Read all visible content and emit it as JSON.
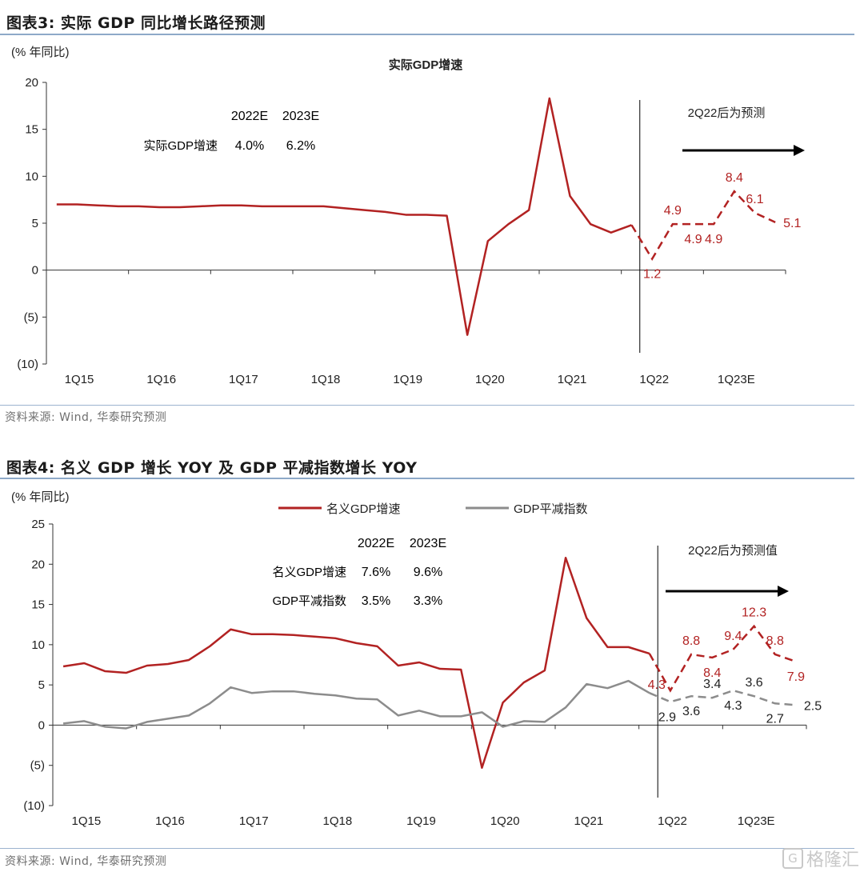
{
  "figure3": {
    "title": "图表3:  实际 GDP 同比增长路径预测",
    "unit_label": "(% 年同比)",
    "chart_title": "实际GDP增速",
    "forecast_note": "2Q22后为预测",
    "table": {
      "headers": [
        "2022E",
        "2023E"
      ],
      "rows": [
        {
          "label": "实际GDP增速",
          "values": [
            "4.0%",
            "6.2%"
          ]
        }
      ]
    },
    "source": "资料来源: Wind, 华泰研究预测"
  },
  "figure4": {
    "title": "图表4:  名义 GDP 增长 YOY 及 GDP 平减指数增长 YOY",
    "unit_label": "(% 年同比)",
    "forecast_note": "2Q22后为预测值",
    "table": {
      "headers": [
        "2022E",
        "2023E"
      ],
      "rows": [
        {
          "label": "名义GDP增速",
          "values": [
            "7.6%",
            "9.6%"
          ]
        },
        {
          "label": "GDP平减指数",
          "values": [
            "3.5%",
            "3.3%"
          ]
        }
      ]
    },
    "source": "资料来源: Wind, 华泰研究预测"
  },
  "watermark": "格隆汇",
  "colors": {
    "red": "#b22222",
    "gray": "#8c8c8c",
    "axis": "#333333"
  },
  "chart_data": [
    {
      "type": "line",
      "title": "实际GDP增速",
      "ylabel": "(% 年同比)",
      "ylim": [
        -10,
        20
      ],
      "yticks": [
        20,
        15,
        10,
        5,
        0,
        -5,
        -10
      ],
      "ytick_labels": [
        "20",
        "15",
        "10",
        "5",
        "0",
        "(5)",
        "(10)"
      ],
      "x_count": 36,
      "xtick_labels": [
        {
          "i": 0,
          "label": "1Q15"
        },
        {
          "i": 4,
          "label": "1Q16"
        },
        {
          "i": 8,
          "label": "1Q17"
        },
        {
          "i": 12,
          "label": "1Q18"
        },
        {
          "i": 16,
          "label": "1Q19"
        },
        {
          "i": 20,
          "label": "1Q20"
        },
        {
          "i": 24,
          "label": "1Q21"
        },
        {
          "i": 28,
          "label": "1Q22"
        },
        {
          "i": 32,
          "label": "1Q23E"
        }
      ],
      "forecast_start_index": 29,
      "series": [
        {
          "name": "实际GDP增速",
          "color": "#b22222",
          "values": [
            7.0,
            7.0,
            6.9,
            6.8,
            6.8,
            6.7,
            6.7,
            6.8,
            6.9,
            6.9,
            6.8,
            6.8,
            6.8,
            6.8,
            6.6,
            6.4,
            6.2,
            5.9,
            5.9,
            5.8,
            -6.9,
            3.1,
            4.9,
            6.4,
            18.3,
            7.9,
            4.9,
            4.0,
            4.8,
            1.2,
            4.9,
            4.9,
            4.9,
            8.4,
            6.1,
            5.1
          ],
          "labels": [
            {
              "i": 29,
              "text": "1.2",
              "pos": "below"
            },
            {
              "i": 30,
              "text": "4.9",
              "pos": "above"
            },
            {
              "i": 31,
              "text": "4.9",
              "pos": "below"
            },
            {
              "i": 32,
              "text": "4.9",
              "pos": "below"
            },
            {
              "i": 33,
              "text": "8.4",
              "pos": "above"
            },
            {
              "i": 34,
              "text": "6.1",
              "pos": "above"
            },
            {
              "i": 35,
              "text": "5.1",
              "pos": "right"
            }
          ]
        }
      ]
    },
    {
      "type": "line",
      "title": "",
      "ylabel": "(% 年同比)",
      "ylim": [
        -10,
        25
      ],
      "yticks": [
        25,
        20,
        15,
        10,
        5,
        0,
        -5,
        -10
      ],
      "ytick_labels": [
        "25",
        "20",
        "15",
        "10",
        "5",
        "0",
        "(5)",
        "(10)"
      ],
      "x_count": 36,
      "xtick_labels": [
        {
          "i": 0,
          "label": "1Q15"
        },
        {
          "i": 4,
          "label": "1Q16"
        },
        {
          "i": 8,
          "label": "1Q17"
        },
        {
          "i": 12,
          "label": "1Q18"
        },
        {
          "i": 16,
          "label": "1Q19"
        },
        {
          "i": 20,
          "label": "1Q20"
        },
        {
          "i": 24,
          "label": "1Q21"
        },
        {
          "i": 28,
          "label": "1Q22"
        },
        {
          "i": 32,
          "label": "1Q23E"
        }
      ],
      "forecast_start_index": 29,
      "legend": [
        {
          "name": "名义GDP增速",
          "color": "#b22222"
        },
        {
          "name": "GDP平减指数",
          "color": "#8c8c8c"
        }
      ],
      "series": [
        {
          "name": "名义GDP增速",
          "color": "#b22222",
          "values": [
            7.3,
            7.7,
            6.7,
            6.5,
            7.4,
            7.6,
            8.1,
            9.8,
            11.9,
            11.3,
            11.3,
            11.2,
            11.0,
            10.8,
            10.2,
            9.8,
            7.4,
            7.8,
            7.0,
            6.9,
            -5.3,
            2.8,
            5.3,
            6.8,
            20.8,
            13.3,
            9.7,
            9.7,
            8.9,
            4.3,
            8.8,
            8.4,
            9.4,
            12.3,
            8.8,
            7.9
          ],
          "labels": [
            {
              "i": 29,
              "text": "4.3",
              "pos": "left"
            },
            {
              "i": 30,
              "text": "8.8",
              "pos": "above"
            },
            {
              "i": 31,
              "text": "8.4",
              "pos": "below"
            },
            {
              "i": 32,
              "text": "9.4",
              "pos": "above"
            },
            {
              "i": 33,
              "text": "12.3",
              "pos": "above"
            },
            {
              "i": 34,
              "text": "8.8",
              "pos": "above"
            },
            {
              "i": 35,
              "text": "7.9",
              "pos": "below"
            }
          ]
        },
        {
          "name": "GDP平减指数",
          "color": "#8c8c8c",
          "values": [
            0.2,
            0.5,
            -0.2,
            -0.4,
            0.4,
            0.8,
            1.2,
            2.7,
            4.7,
            4.0,
            4.2,
            4.2,
            3.9,
            3.7,
            3.3,
            3.2,
            1.2,
            1.8,
            1.1,
            1.1,
            1.6,
            -0.2,
            0.5,
            0.4,
            2.2,
            5.1,
            4.6,
            5.5,
            4.0,
            2.9,
            3.6,
            3.4,
            4.3,
            3.6,
            2.7,
            2.5
          ],
          "labels": [
            {
              "i": 29,
              "text": "2.9",
              "pos": "below-left"
            },
            {
              "i": 30,
              "text": "3.6",
              "pos": "below"
            },
            {
              "i": 31,
              "text": "3.4",
              "pos": "above"
            },
            {
              "i": 32,
              "text": "4.3",
              "pos": "below"
            },
            {
              "i": 33,
              "text": "3.6",
              "pos": "above"
            },
            {
              "i": 34,
              "text": "2.7",
              "pos": "below"
            },
            {
              "i": 35,
              "text": "2.5",
              "pos": "right"
            }
          ]
        }
      ]
    }
  ]
}
